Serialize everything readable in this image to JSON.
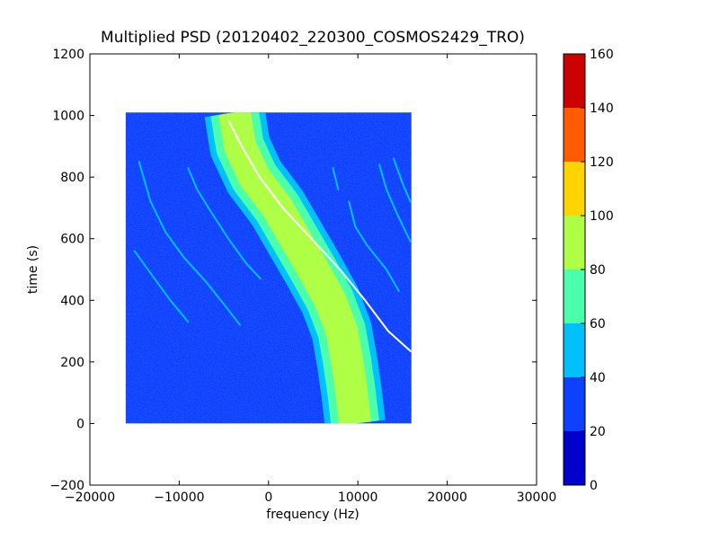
{
  "chart_data": {
    "type": "heatmap",
    "title": "Multiplied PSD (20120402_220300_COSMOS2429_TRO)",
    "xlabel": "frequency (Hz)",
    "ylabel": "time (s)",
    "xlim": [
      -20000,
      30000
    ],
    "ylim": [
      -200,
      1200
    ],
    "xticks": [
      -20000,
      -10000,
      0,
      10000,
      20000,
      30000
    ],
    "xtick_labels": [
      "−20000",
      "−10000",
      "0",
      "10000",
      "20000",
      "30000"
    ],
    "yticks": [
      -200,
      0,
      200,
      400,
      600,
      800,
      1000,
      1200
    ],
    "ytick_labels": [
      "−200",
      "0",
      "200",
      "400",
      "600",
      "800",
      "1000",
      "1200"
    ],
    "data_extent": {
      "x": [
        -16000,
        16000
      ],
      "y": [
        0,
        1010
      ]
    },
    "background_level": 30,
    "colormap": "jet",
    "colorbar": {
      "min": 0,
      "max": 160,
      "ticks": [
        0,
        20,
        40,
        60,
        80,
        100,
        120,
        140,
        160
      ],
      "tick_labels": [
        "0",
        "20",
        "40",
        "60",
        "80",
        "100",
        "120",
        "140",
        "160"
      ],
      "colors": [
        "#0000cd",
        "#0d41ff",
        "#00c0ff",
        "#4cffab",
        "#b0ff47",
        "#ffd400",
        "#ff5b00",
        "#cd0000"
      ]
    },
    "features": {
      "main_band": {
        "name": "main band",
        "center_curve": [
          [
            -3800,
            1010
          ],
          [
            -3200,
            900
          ],
          [
            -1600,
            800
          ],
          [
            1000,
            700
          ],
          [
            3000,
            600
          ],
          [
            5000,
            500
          ],
          [
            6900,
            400
          ],
          [
            8200,
            300
          ],
          [
            8800,
            200
          ],
          [
            9300,
            100
          ],
          [
            9700,
            0
          ]
        ],
        "layers": [
          {
            "half_width": 3400,
            "level": 50
          },
          {
            "half_width": 2700,
            "level": 70
          },
          {
            "half_width": 1800,
            "level": 90
          }
        ]
      },
      "white_trace": {
        "name": "white trace",
        "points": [
          [
            -4400,
            980
          ],
          [
            -3000,
            900
          ],
          [
            -1000,
            800
          ],
          [
            1600,
            700
          ],
          [
            4800,
            600
          ],
          [
            8000,
            500
          ],
          [
            10800,
            400
          ],
          [
            13400,
            300
          ],
          [
            15900,
            235
          ]
        ],
        "level": 170
      },
      "faint_traces": [
        {
          "points": [
            [
              -14500,
              850
            ],
            [
              -13200,
              720
            ],
            [
              -11500,
              620
            ],
            [
              -9500,
              540
            ],
            [
              -7000,
              460
            ],
            [
              -4800,
              380
            ],
            [
              -3200,
              320
            ]
          ],
          "level": 55
        },
        {
          "points": [
            [
              -15000,
              560
            ],
            [
              -13000,
              480
            ],
            [
              -11000,
              400
            ],
            [
              -9000,
              330
            ]
          ],
          "level": 50
        },
        {
          "points": [
            [
              -9000,
              830
            ],
            [
              -8000,
              760
            ],
            [
              -6500,
              690
            ],
            [
              -4500,
              600
            ],
            [
              -2500,
              520
            ],
            [
              -900,
              470
            ]
          ],
          "level": 45
        },
        {
          "points": [
            [
              7200,
              830
            ],
            [
              7800,
              760
            ]
          ],
          "level": 45
        },
        {
          "points": [
            [
              9000,
              720
            ],
            [
              9700,
              640
            ],
            [
              11000,
              580
            ],
            [
              13200,
              500
            ],
            [
              14600,
              430
            ]
          ],
          "level": 55
        },
        {
          "points": [
            [
              12400,
              840
            ],
            [
              13200,
              760
            ],
            [
              14400,
              680
            ],
            [
              15900,
              590
            ]
          ],
          "level": 55
        },
        {
          "points": [
            [
              14000,
              860
            ],
            [
              15000,
              780
            ],
            [
              15900,
              720
            ]
          ],
          "level": 50
        }
      ]
    }
  }
}
